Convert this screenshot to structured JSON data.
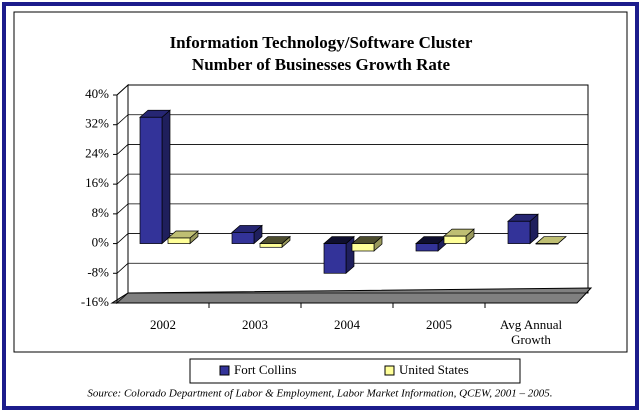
{
  "chart_data": {
    "type": "bar3d",
    "title": "Information Technology/Software Cluster\nNumber of Businesses Growth Rate",
    "categories": [
      "2002",
      "2003",
      "2004",
      "2005",
      "Avg Annual Growth"
    ],
    "series": [
      {
        "name": "Fort Collins",
        "color": "#333399",
        "values": [
          34,
          3,
          -8,
          -2,
          6
        ]
      },
      {
        "name": "United States",
        "color": "#ffff99",
        "values": [
          1.5,
          -1,
          -2,
          2,
          0
        ]
      }
    ],
    "ylim": [
      -16,
      40
    ],
    "yticks": [
      {
        "value": -16,
        "label": "-16%"
      },
      {
        "value": -8,
        "label": "-8%"
      },
      {
        "value": 0,
        "label": "0%"
      },
      {
        "value": 8,
        "label": "8%"
      },
      {
        "value": 16,
        "label": "16%"
      },
      {
        "value": 24,
        "label": "24%"
      },
      {
        "value": 32,
        "label": "32%"
      },
      {
        "value": 40,
        "label": "40%"
      }
    ],
    "grid": true,
    "source": "Source: Colorado Department of Labor & Employment, Labor Market Information, QCEW, 2001 – 2005."
  }
}
